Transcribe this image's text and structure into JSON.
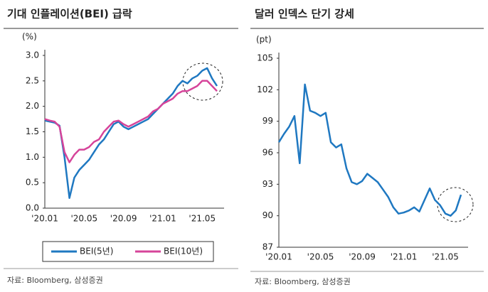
{
  "chart_data": [
    {
      "type": "line",
      "title": "기대 인플레이션(BEI) 급락",
      "y_unit": "(%)",
      "categories": [
        "'20.01",
        null,
        null,
        null,
        null,
        null,
        null,
        null,
        "'20.05",
        null,
        null,
        null,
        null,
        null,
        null,
        null,
        "'20.09",
        null,
        null,
        null,
        null,
        null,
        null,
        null,
        "'21.01",
        null,
        null,
        null,
        null,
        null,
        null,
        null,
        "'21.05",
        null,
        null,
        null
      ],
      "series": [
        {
          "name": "BEI(5년)",
          "color": "#1f78c1",
          "values": [
            1.72,
            1.7,
            1.68,
            1.62,
            1.0,
            0.2,
            0.6,
            0.75,
            0.85,
            0.95,
            1.1,
            1.25,
            1.35,
            1.5,
            1.65,
            1.7,
            1.6,
            1.55,
            1.6,
            1.65,
            1.7,
            1.75,
            1.85,
            1.95,
            2.05,
            2.15,
            2.25,
            2.4,
            2.5,
            2.45,
            2.55,
            2.6,
            2.7,
            2.75,
            2.55,
            2.4
          ]
        },
        {
          "name": "BEI(10년)",
          "color": "#d6449a",
          "values": [
            1.75,
            1.72,
            1.7,
            1.6,
            1.1,
            0.9,
            1.05,
            1.15,
            1.15,
            1.2,
            1.3,
            1.35,
            1.5,
            1.6,
            1.7,
            1.72,
            1.65,
            1.6,
            1.65,
            1.7,
            1.75,
            1.8,
            1.9,
            1.95,
            2.05,
            2.1,
            2.15,
            2.25,
            2.3,
            2.3,
            2.35,
            2.4,
            2.5,
            2.5,
            2.4,
            2.3
          ]
        }
      ],
      "ylim": [
        0,
        3
      ],
      "yticks": [
        {
          "value": 0,
          "label": "0.0"
        },
        {
          "value": 0.5,
          "label": "0.5"
        },
        {
          "value": 1,
          "label": "1.0"
        },
        {
          "value": 1.5,
          "label": "1.5"
        },
        {
          "value": 2,
          "label": "2.0"
        },
        {
          "value": 2.5,
          "label": "2.5"
        },
        {
          "value": 3,
          "label": "3.0"
        }
      ],
      "legend": "bottom",
      "source": "자료: Bloomberg, 삼성증권"
    },
    {
      "type": "line",
      "title": "달러 인덱스 단기 강세",
      "y_unit": "(pt)",
      "categories": [
        "'20.01",
        null,
        null,
        null,
        null,
        null,
        null,
        null,
        "'20.05",
        null,
        null,
        null,
        null,
        null,
        null,
        null,
        "'20.09",
        null,
        null,
        null,
        null,
        null,
        null,
        null,
        "'21.01",
        null,
        null,
        null,
        null,
        null,
        null,
        null,
        "'21.05",
        null,
        null,
        null
      ],
      "series": [
        {
          "color": "#1f78c1",
          "values": [
            97,
            97.8,
            98.5,
            99.5,
            95,
            102.5,
            100,
            99.8,
            99.5,
            99.8,
            97,
            96.5,
            96.8,
            94.5,
            93.2,
            93,
            93.3,
            94,
            93.6,
            93.2,
            92.5,
            91.8,
            90.8,
            90.2,
            90.3,
            90.5,
            90.8,
            90.4,
            91.5,
            92.6,
            91.5,
            91,
            90.2,
            90,
            90.5,
            92
          ]
        }
      ],
      "ylim": [
        87,
        105
      ],
      "yticks": [
        87,
        90,
        93,
        96,
        99,
        102,
        105
      ],
      "source": "자료: Bloomberg, 삼성증권"
    }
  ]
}
